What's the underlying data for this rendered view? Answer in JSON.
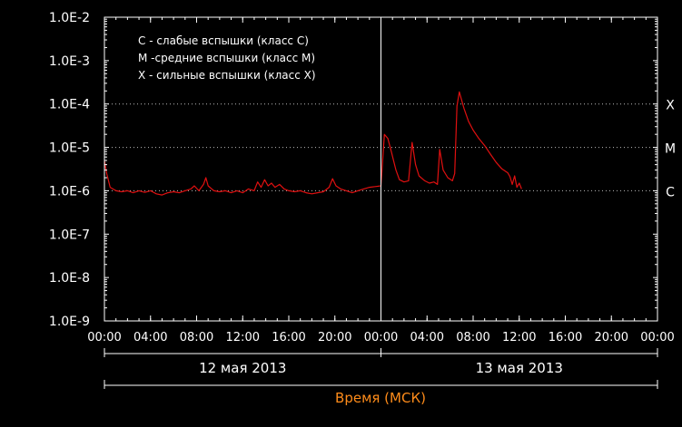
{
  "chart_data": {
    "type": "line",
    "title": "",
    "legend": {
      "placement": "top-left",
      "items": [
        "C - слабые вспышки (класс С)",
        "М -средние вспышки (класс М)",
        "Х - сильные вспышки (класс Х)"
      ]
    },
    "y_axis": {
      "scale": "log",
      "ylim": [
        1e-09,
        0.01
      ],
      "ticks": [
        {
          "value": 1e-09,
          "label": "1.0E-9"
        },
        {
          "value": 1e-08,
          "label": "1.0E-8"
        },
        {
          "value": 1e-07,
          "label": "1.0E-7"
        },
        {
          "value": 1e-06,
          "label": "1.0E-6"
        },
        {
          "value": 1e-05,
          "label": "1.0E-5"
        },
        {
          "value": 0.0001,
          "label": "1.0E-4"
        },
        {
          "value": 0.001,
          "label": "1.0E-3"
        },
        {
          "value": 0.01,
          "label": "1.0E-2"
        }
      ]
    },
    "x_axis": {
      "xlim_hours": [
        0,
        48
      ],
      "tick_labels": [
        "00:00",
        "04:00",
        "08:00",
        "12:00",
        "16:00",
        "20:00",
        "00:00",
        "04:00",
        "08:00",
        "12:00",
        "16:00",
        "20:00",
        "00:00"
      ],
      "date_labels": [
        {
          "label": "12 мая 2013",
          "from_hour": 0,
          "to_hour": 24
        },
        {
          "label": "13 мая 2013",
          "from_hour": 24,
          "to_hour": 48
        }
      ],
      "xlabel": "Время (МСК)",
      "day_divider_hour": 24
    },
    "class_thresholds": [
      {
        "label": "C",
        "value": 1e-06
      },
      {
        "label": "M",
        "value": 1e-05
      },
      {
        "label": "X",
        "value": 0.0001
      }
    ],
    "series": [
      {
        "color": "#e01010",
        "points": [
          [
            0.0,
            5e-06
          ],
          [
            0.2,
            2.5e-06
          ],
          [
            0.5,
            1.2e-06
          ],
          [
            1.0,
            1e-06
          ],
          [
            1.5,
            9.5e-07
          ],
          [
            2.0,
            1e-06
          ],
          [
            2.5,
            9e-07
          ],
          [
            3.0,
            1e-06
          ],
          [
            3.5,
            9.2e-07
          ],
          [
            4.0,
            1e-06
          ],
          [
            4.5,
            8.5e-07
          ],
          [
            5.0,
            8e-07
          ],
          [
            5.5,
            9e-07
          ],
          [
            6.0,
            9.5e-07
          ],
          [
            6.5,
            9e-07
          ],
          [
            7.0,
            1e-06
          ],
          [
            7.5,
            1.1e-06
          ],
          [
            7.8,
            1.3e-06
          ],
          [
            8.2,
            1e-06
          ],
          [
            8.6,
            1.4e-06
          ],
          [
            8.8,
            2e-06
          ],
          [
            9.0,
            1.3e-06
          ],
          [
            9.5,
            1e-06
          ],
          [
            10.0,
            9.5e-07
          ],
          [
            10.5,
            1e-06
          ],
          [
            11.0,
            9e-07
          ],
          [
            11.5,
            1e-06
          ],
          [
            12.0,
            9e-07
          ],
          [
            12.5,
            1.1e-06
          ],
          [
            13.0,
            1e-06
          ],
          [
            13.3,
            1.6e-06
          ],
          [
            13.6,
            1.2e-06
          ],
          [
            13.9,
            1.8e-06
          ],
          [
            14.2,
            1.3e-06
          ],
          [
            14.5,
            1.5e-06
          ],
          [
            14.8,
            1.2e-06
          ],
          [
            15.2,
            1.4e-06
          ],
          [
            15.6,
            1.1e-06
          ],
          [
            16.0,
            1e-06
          ],
          [
            16.5,
            9.5e-07
          ],
          [
            17.0,
            1e-06
          ],
          [
            17.5,
            9e-07
          ],
          [
            18.0,
            8.5e-07
          ],
          [
            18.5,
            9e-07
          ],
          [
            19.0,
            9.5e-07
          ],
          [
            19.5,
            1.2e-06
          ],
          [
            19.8,
            1.9e-06
          ],
          [
            20.1,
            1.3e-06
          ],
          [
            20.5,
            1.1e-06
          ],
          [
            21.0,
            1e-06
          ],
          [
            21.5,
            9e-07
          ],
          [
            22.0,
            1e-06
          ],
          [
            22.5,
            1.1e-06
          ],
          [
            23.0,
            1.2e-06
          ],
          [
            23.5,
            1.25e-06
          ],
          [
            24.0,
            1.3e-06
          ],
          [
            24.3,
            2e-05
          ],
          [
            24.6,
            1.6e-05
          ],
          [
            24.9,
            8e-06
          ],
          [
            25.3,
            3e-06
          ],
          [
            25.6,
            1.8e-06
          ],
          [
            26.0,
            1.6e-06
          ],
          [
            26.4,
            1.7e-06
          ],
          [
            26.7,
            1.3e-05
          ],
          [
            27.0,
            4e-06
          ],
          [
            27.3,
            2.2e-06
          ],
          [
            27.8,
            1.7e-06
          ],
          [
            28.2,
            1.5e-06
          ],
          [
            28.6,
            1.6e-06
          ],
          [
            28.9,
            1.4e-06
          ],
          [
            29.1,
            9e-06
          ],
          [
            29.4,
            3e-06
          ],
          [
            29.8,
            2e-06
          ],
          [
            30.2,
            1.7e-06
          ],
          [
            30.4,
            2.5e-06
          ],
          [
            30.6,
            9e-05
          ],
          [
            30.8,
            0.00019
          ],
          [
            31.2,
            8e-05
          ],
          [
            31.6,
            4e-05
          ],
          [
            32.0,
            2.5e-05
          ],
          [
            32.5,
            1.6e-05
          ],
          [
            33.0,
            1.1e-05
          ],
          [
            33.5,
            7e-06
          ],
          [
            34.0,
            4.5e-06
          ],
          [
            34.5,
            3.2e-06
          ],
          [
            35.0,
            2.6e-06
          ],
          [
            35.2,
            2.1e-06
          ],
          [
            35.4,
            1.4e-06
          ],
          [
            35.6,
            2.2e-06
          ],
          [
            35.8,
            1.2e-06
          ],
          [
            36.0,
            1.5e-06
          ],
          [
            36.2,
            1.1e-06
          ]
        ]
      }
    ]
  }
}
